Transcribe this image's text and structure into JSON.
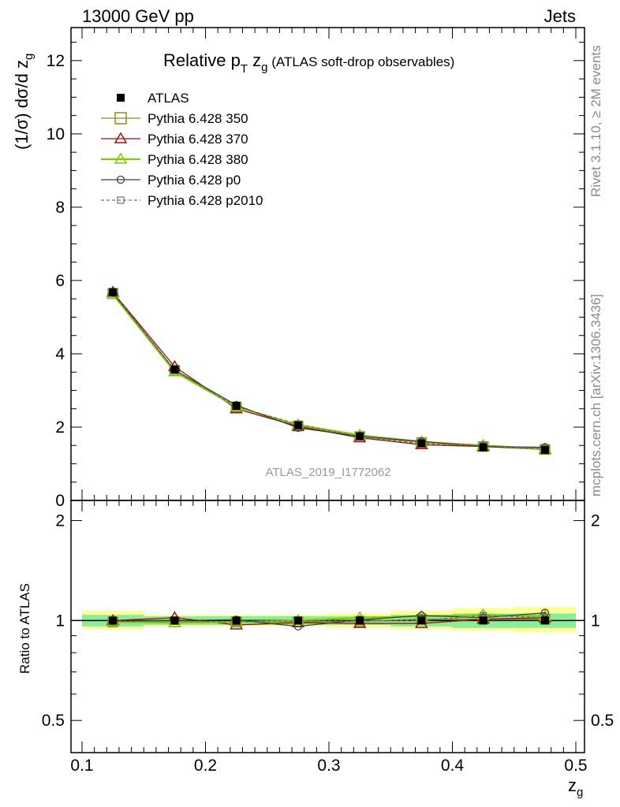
{
  "header": {
    "left": "13000 GeV pp",
    "right": "Jets"
  },
  "plot_title": {
    "main": "Relative p",
    "sub_t": "T",
    "z": " z",
    "sub_g": "g",
    "tail": " (ATLAS soft-drop observables)"
  },
  "watermark": "ATLAS_2019_I1772062",
  "side_labels": {
    "rivet": "Rivet 3.1.10, ≥ 2M events",
    "mcplots": "mcplots.cern.ch [arXiv:1306.3436]"
  },
  "axes": {
    "ylabel_main": "(1/σ) dσ/d z",
    "ylabel_main_sub": "g",
    "ylabel_ratio": "Ratio to ATLAS",
    "xlabel": "z",
    "xlabel_sub": "g",
    "main_yticks": [
      "0",
      "2",
      "4",
      "6",
      "8",
      "10",
      "12"
    ],
    "ratio_yticks": [
      "0.5",
      "1",
      "2"
    ],
    "xticks": [
      "0.1",
      "0.2",
      "0.3",
      "0.4",
      "0.5"
    ]
  },
  "colors": {
    "atlas": "#000000",
    "p350": "#8c8c16",
    "p370": "#a01010",
    "p380": "#7ccd00",
    "p0": "#404040",
    "p2010": "#707070",
    "band_green": "#88ee99",
    "band_yellow": "#ffff99"
  },
  "chart_data": {
    "type": "line",
    "title": "Relative pT zg (ATLAS soft-drop observables)",
    "xlabel": "zg",
    "ylabel": "(1/σ) dσ/d zg",
    "xlim": [
      0.1,
      0.5
    ],
    "ylim": [
      0,
      12.9
    ],
    "ratio_ylim": [
      0.4,
      2.3
    ],
    "ratio_ylabel": "Ratio to ATLAS",
    "x": [
      0.125,
      0.175,
      0.225,
      0.275,
      0.325,
      0.375,
      0.425,
      0.475
    ],
    "xbins": [
      [
        0.1,
        0.15
      ],
      [
        0.15,
        0.2
      ],
      [
        0.2,
        0.25
      ],
      [
        0.25,
        0.3
      ],
      [
        0.3,
        0.35
      ],
      [
        0.35,
        0.4
      ],
      [
        0.4,
        0.45
      ],
      [
        0.45,
        0.5
      ]
    ],
    "data": {
      "name": "ATLAS",
      "values": [
        5.68,
        3.57,
        2.58,
        2.05,
        1.75,
        1.56,
        1.45,
        1.38
      ]
    },
    "uncertainty_bands": {
      "green": [
        [
          0.96,
          1.04
        ],
        [
          0.97,
          1.03
        ],
        [
          0.97,
          1.03
        ],
        [
          0.97,
          1.03
        ],
        [
          0.97,
          1.03
        ],
        [
          0.96,
          1.04
        ],
        [
          0.95,
          1.05
        ],
        [
          0.95,
          1.05
        ]
      ],
      "yellow": [
        [
          0.94,
          1.07
        ],
        [
          0.96,
          1.04
        ],
        [
          0.96,
          1.04
        ],
        [
          0.96,
          1.04
        ],
        [
          0.95,
          1.05
        ],
        [
          0.94,
          1.07
        ],
        [
          0.93,
          1.09
        ],
        [
          0.92,
          1.1
        ]
      ]
    },
    "series": [
      {
        "name": "Pythia 6.428 350",
        "marker": "square",
        "dashed": false,
        "values": [
          5.65,
          3.55,
          2.55,
          2.03,
          1.74,
          1.58,
          1.47,
          1.39
        ],
        "ratio": [
          0.99,
          0.99,
          0.99,
          0.99,
          0.995,
          1.01,
          1.01,
          1.01
        ]
      },
      {
        "name": "Pythia 6.428 370",
        "marker": "triangle",
        "dashed": false,
        "values": [
          5.68,
          3.65,
          2.5,
          2.02,
          1.71,
          1.52,
          1.47,
          1.4
        ],
        "ratio": [
          1.0,
          1.02,
          0.97,
          0.985,
          0.98,
          0.98,
          1.01,
          1.02
        ]
      },
      {
        "name": "Pythia 6.428 380",
        "marker": "triangle",
        "dashed": false,
        "values": [
          5.62,
          3.51,
          2.55,
          2.06,
          1.78,
          1.6,
          1.5,
          1.41
        ],
        "ratio": [
          0.99,
          0.985,
          0.99,
          1.0,
          1.02,
          1.03,
          1.04,
          1.03
        ]
      },
      {
        "name": "Pythia 6.428 p0",
        "marker": "circle",
        "dashed": false,
        "values": [
          5.66,
          3.56,
          2.6,
          1.98,
          1.75,
          1.61,
          1.47,
          1.45
        ],
        "ratio": [
          0.995,
          1.0,
          1.005,
          0.96,
          1.005,
          1.035,
          1.02,
          1.055
        ]
      },
      {
        "name": "Pythia 6.428 p2010",
        "marker": "square-small",
        "dashed": true,
        "values": [
          5.66,
          3.55,
          2.56,
          2.08,
          1.74,
          1.55,
          1.5,
          1.4
        ],
        "ratio": [
          0.995,
          0.995,
          0.99,
          1.0,
          0.995,
          1.0,
          1.035,
          1.02
        ]
      }
    ]
  }
}
